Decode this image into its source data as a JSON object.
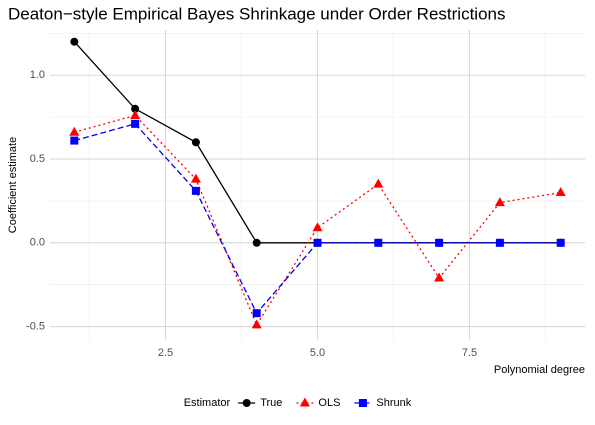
{
  "chart_data": {
    "type": "line",
    "title": "Deaton−style Empirical Bayes Shrinkage under Order Restrictions",
    "x_label": "Polynomial degree",
    "y_label": "Coefficient estimate",
    "legend_title": "Estimator",
    "legend_position": "bottom",
    "grid": true,
    "x": [
      1,
      2,
      3,
      4,
      5,
      6,
      7,
      8,
      9
    ],
    "xlim": [
      0.6,
      9.4
    ],
    "xticks": [
      2.5,
      {
        "value": 5,
        "label": "5.0"
      },
      7.5
    ],
    "ylim": [
      -0.58,
      1.27
    ],
    "yticks": [
      -0.5,
      {
        "value": 0,
        "label": "0.0"
      },
      0.5,
      {
        "value": 1,
        "label": "1.0"
      }
    ],
    "series": [
      {
        "name": "True",
        "color": "#000000",
        "marker": "circle",
        "dash": "solid",
        "values": [
          1.2,
          0.8,
          0.6,
          0,
          0,
          0,
          0,
          0,
          0
        ]
      },
      {
        "name": "OLS",
        "color": "#ff0000",
        "marker": "triangle",
        "dash": "dotted",
        "values": [
          0.66,
          0.76,
          0.38,
          -0.49,
          0.09,
          0.35,
          -0.21,
          0.24,
          0.3
        ]
      },
      {
        "name": "Shrunk",
        "color": "#0000ff",
        "marker": "square",
        "dash": "dashed",
        "values": [
          0.61,
          0.71,
          0.31,
          -0.42,
          0,
          0,
          0,
          0,
          0
        ]
      }
    ]
  }
}
